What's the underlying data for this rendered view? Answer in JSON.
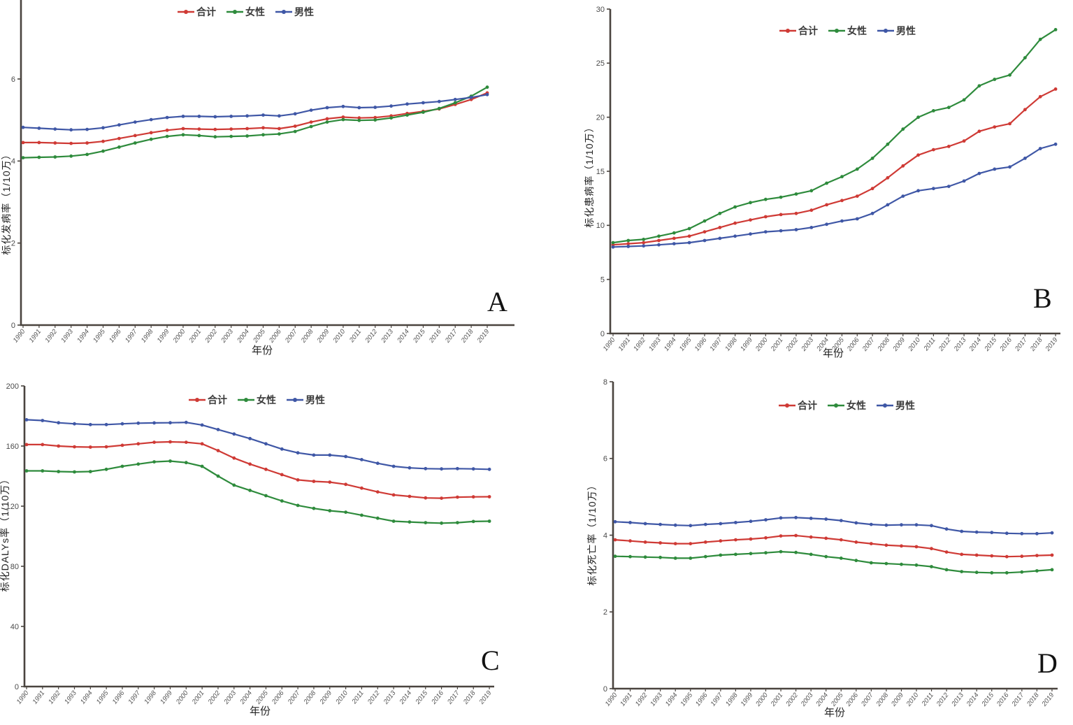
{
  "page": {
    "background": "#ffffff"
  },
  "colors": {
    "total": "#cf3a35",
    "female": "#2e8b3c",
    "male": "#3f57a6",
    "axis": "#4a443f",
    "tick_text": "#4a4a4a",
    "panel_letter": "#121212"
  },
  "legend": {
    "items": [
      {
        "key": "total",
        "label": "合计"
      },
      {
        "key": "female",
        "label": "女性"
      },
      {
        "key": "male",
        "label": "男性"
      }
    ]
  },
  "chart_data": [
    {
      "panel": "A",
      "type": "line",
      "title": "",
      "ylabel": "标化发病率（1/10万）",
      "xlabel": "年份",
      "ylim": [
        0,
        7.9
      ],
      "yticks": [
        0,
        2,
        4,
        6
      ],
      "grid": false,
      "legend_position": "top-center",
      "x": [
        "1990",
        "1991",
        "1992",
        "1993",
        "1994",
        "1995",
        "1996",
        "1997",
        "1998",
        "1999",
        "2000",
        "2001",
        "2002",
        "2003",
        "2004",
        "2005",
        "2006",
        "2007",
        "2008",
        "2009",
        "2010",
        "2011",
        "2012",
        "2013",
        "2014",
        "2015",
        "2016",
        "2017",
        "2018",
        "2019"
      ],
      "series": [
        {
          "key": "total",
          "name": "合计",
          "values": [
            4.45,
            4.45,
            4.44,
            4.43,
            4.44,
            4.48,
            4.55,
            4.62,
            4.69,
            4.75,
            4.79,
            4.78,
            4.77,
            4.78,
            4.79,
            4.81,
            4.79,
            4.85,
            4.95,
            5.03,
            5.07,
            5.05,
            5.06,
            5.1,
            5.16,
            5.21,
            5.27,
            5.38,
            5.5,
            5.66
          ]
        },
        {
          "key": "female",
          "name": "女性",
          "values": [
            4.08,
            4.09,
            4.1,
            4.12,
            4.16,
            4.24,
            4.34,
            4.44,
            4.53,
            4.6,
            4.64,
            4.62,
            4.59,
            4.6,
            4.61,
            4.64,
            4.66,
            4.72,
            4.84,
            4.95,
            5.01,
            4.99,
            5.0,
            5.05,
            5.12,
            5.19,
            5.28,
            5.42,
            5.58,
            5.8
          ]
        },
        {
          "key": "male",
          "name": "男性",
          "values": [
            4.82,
            4.8,
            4.78,
            4.76,
            4.77,
            4.81,
            4.88,
            4.95,
            5.01,
            5.06,
            5.09,
            5.09,
            5.08,
            5.09,
            5.1,
            5.12,
            5.1,
            5.15,
            5.24,
            5.3,
            5.33,
            5.3,
            5.31,
            5.34,
            5.39,
            5.42,
            5.45,
            5.5,
            5.55,
            5.62
          ]
        }
      ]
    },
    {
      "panel": "B",
      "type": "line",
      "title": "",
      "ylabel": "标化患病率（1/10万）",
      "xlabel": "年份",
      "ylim": [
        0,
        30
      ],
      "yticks": [
        0,
        5,
        10,
        15,
        20,
        25,
        30
      ],
      "grid": false,
      "legend_position": "top-center",
      "x": [
        "1990",
        "1991",
        "1992",
        "1993",
        "1994",
        "1995",
        "1996",
        "1997",
        "1998",
        "1999",
        "2000",
        "2001",
        "2002",
        "2003",
        "2004",
        "2005",
        "2006",
        "2007",
        "2008",
        "2009",
        "2010",
        "2011",
        "2012",
        "2013",
        "2014",
        "2015",
        "2016",
        "2017",
        "2018",
        "2019"
      ],
      "series": [
        {
          "key": "total",
          "name": "合计",
          "values": [
            8.2,
            8.3,
            8.4,
            8.6,
            8.8,
            9.0,
            9.4,
            9.8,
            10.2,
            10.5,
            10.8,
            11.0,
            11.1,
            11.4,
            11.9,
            12.3,
            12.7,
            13.4,
            14.4,
            15.5,
            16.5,
            17.0,
            17.3,
            17.8,
            18.7,
            19.1,
            19.4,
            20.7,
            21.9,
            22.6
          ]
        },
        {
          "key": "female",
          "name": "女性",
          "values": [
            8.4,
            8.6,
            8.7,
            9.0,
            9.3,
            9.7,
            10.4,
            11.1,
            11.7,
            12.1,
            12.4,
            12.6,
            12.9,
            13.2,
            13.9,
            14.5,
            15.2,
            16.2,
            17.5,
            18.9,
            20.0,
            20.6,
            20.9,
            21.6,
            22.9,
            23.5,
            23.9,
            25.5,
            27.2,
            28.1
          ]
        },
        {
          "key": "male",
          "name": "男性",
          "values": [
            8.0,
            8.05,
            8.1,
            8.2,
            8.3,
            8.4,
            8.6,
            8.8,
            9.0,
            9.2,
            9.4,
            9.5,
            9.6,
            9.8,
            10.1,
            10.4,
            10.6,
            11.1,
            11.9,
            12.7,
            13.2,
            13.4,
            13.6,
            14.1,
            14.8,
            15.2,
            15.4,
            16.2,
            17.1,
            17.5
          ]
        }
      ]
    },
    {
      "panel": "C",
      "type": "line",
      "title": "",
      "ylabel": "标化DALYs率（1/10万）",
      "xlabel": "年份",
      "ylim": [
        0,
        200
      ],
      "yticks": [
        0,
        40,
        80,
        120,
        160,
        200
      ],
      "grid": false,
      "legend_position": "top-center",
      "x": [
        "1990",
        "1991",
        "1992",
        "1993",
        "1994",
        "1995",
        "1996",
        "1997",
        "1998",
        "1999",
        "2000",
        "2001",
        "2002",
        "2003",
        "2004",
        "2005",
        "2006",
        "2007",
        "2008",
        "2009",
        "2010",
        "2011",
        "2012",
        "2013",
        "2014",
        "2015",
        "2016",
        "2017",
        "2018",
        "2019"
      ],
      "series": [
        {
          "key": "total",
          "name": "合计",
          "values": [
            161,
            161,
            160,
            159.5,
            159.3,
            159.5,
            160.5,
            161.5,
            162.5,
            162.8,
            162.5,
            161.5,
            157,
            152,
            148,
            144.5,
            141,
            137.5,
            136.5,
            136,
            134.5,
            132,
            129.5,
            127.5,
            126.5,
            125.5,
            125.3,
            126,
            126.2,
            126.3
          ]
        },
        {
          "key": "female",
          "name": "女性",
          "values": [
            143.5,
            143.5,
            143,
            142.8,
            143,
            144.5,
            146.5,
            148,
            149.5,
            150,
            149,
            146.5,
            140,
            134,
            130.5,
            127,
            123.5,
            120.5,
            118.5,
            117,
            116,
            114,
            112,
            110,
            109.5,
            109,
            108.7,
            109,
            109.8,
            110
          ]
        },
        {
          "key": "male",
          "name": "男性",
          "values": [
            177.5,
            177,
            175.5,
            174.8,
            174.3,
            174.3,
            174.8,
            175.2,
            175.4,
            175.5,
            175.7,
            174,
            171,
            168,
            165,
            161.5,
            158,
            155.5,
            154,
            154,
            153,
            151,
            148.5,
            146.5,
            145.5,
            145,
            144.8,
            145,
            144.8,
            144.5
          ]
        }
      ]
    },
    {
      "panel": "D",
      "type": "line",
      "title": "",
      "ylabel": "标化死亡率（1/10万）",
      "xlabel": "年份",
      "ylim": [
        0,
        8
      ],
      "yticks": [
        0,
        2,
        4,
        6,
        8
      ],
      "grid": false,
      "legend_position": "top-center",
      "x": [
        "1990",
        "1991",
        "1992",
        "1993",
        "1994",
        "1995",
        "1996",
        "1997",
        "1998",
        "1999",
        "2000",
        "2001",
        "2002",
        "2003",
        "2004",
        "2005",
        "2006",
        "2007",
        "2008",
        "2009",
        "2010",
        "2011",
        "2012",
        "2013",
        "2014",
        "2015",
        "2016",
        "2017",
        "2018",
        "2019"
      ],
      "series": [
        {
          "key": "total",
          "name": "合计",
          "values": [
            3.88,
            3.85,
            3.82,
            3.8,
            3.78,
            3.78,
            3.82,
            3.85,
            3.88,
            3.9,
            3.93,
            3.98,
            3.99,
            3.95,
            3.92,
            3.88,
            3.82,
            3.78,
            3.74,
            3.72,
            3.7,
            3.65,
            3.56,
            3.5,
            3.48,
            3.46,
            3.44,
            3.45,
            3.47,
            3.48
          ]
        },
        {
          "key": "female",
          "name": "女性",
          "values": [
            3.45,
            3.44,
            3.43,
            3.42,
            3.4,
            3.4,
            3.44,
            3.48,
            3.5,
            3.52,
            3.54,
            3.57,
            3.55,
            3.5,
            3.44,
            3.4,
            3.34,
            3.28,
            3.26,
            3.24,
            3.22,
            3.18,
            3.1,
            3.05,
            3.03,
            3.02,
            3.02,
            3.04,
            3.07,
            3.1
          ]
        },
        {
          "key": "male",
          "name": "男性",
          "values": [
            4.35,
            4.33,
            4.3,
            4.28,
            4.26,
            4.25,
            4.28,
            4.3,
            4.33,
            4.36,
            4.4,
            4.45,
            4.46,
            4.44,
            4.42,
            4.38,
            4.32,
            4.28,
            4.26,
            4.27,
            4.27,
            4.25,
            4.16,
            4.1,
            4.08,
            4.07,
            4.05,
            4.04,
            4.04,
            4.06
          ]
        }
      ]
    }
  ]
}
